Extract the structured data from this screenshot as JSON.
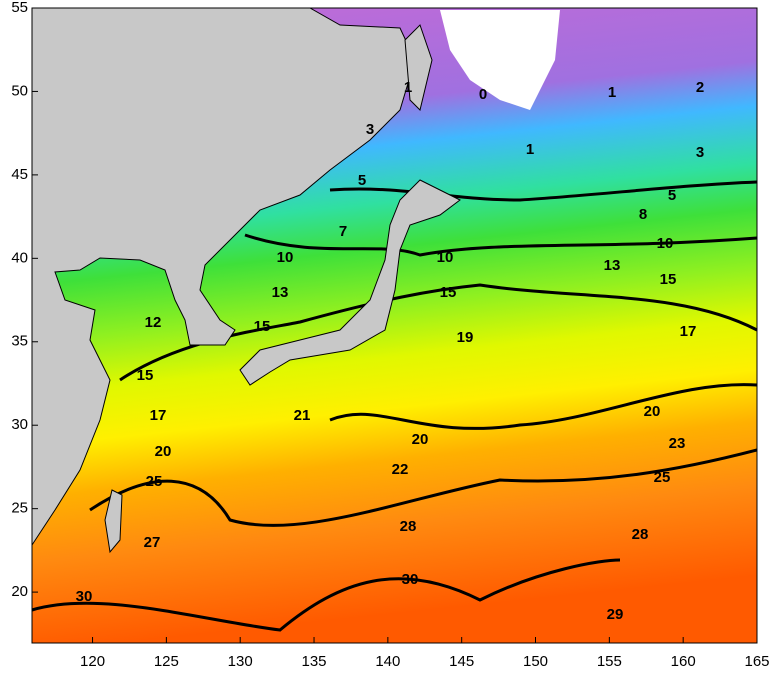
{
  "map": {
    "xlim": [
      115.9,
      165
    ],
    "ylim": [
      16.95,
      55
    ],
    "xticks": [
      120,
      125,
      130,
      135,
      140,
      145,
      150,
      155,
      160,
      165
    ],
    "yticks": [
      20,
      25,
      30,
      35,
      40,
      45,
      50,
      55
    ],
    "contour_labels": [
      0,
      1,
      2,
      1,
      1,
      3,
      3,
      5,
      5,
      8,
      7,
      10,
      10,
      10,
      13,
      13,
      15,
      15,
      15,
      12,
      15,
      19,
      17,
      17,
      20,
      21,
      20,
      20,
      23,
      22,
      25,
      25,
      28,
      28,
      27,
      30,
      30,
      29
    ]
  }
}
